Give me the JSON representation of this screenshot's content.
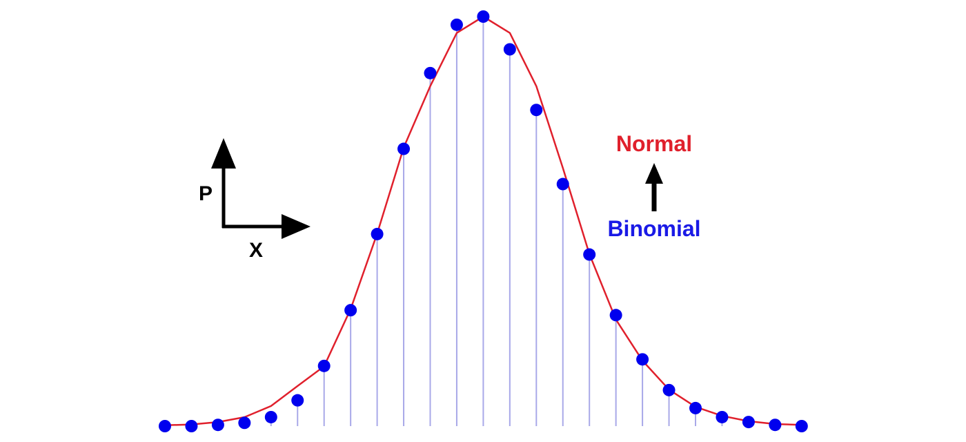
{
  "chart_data": {
    "type": "scatter",
    "axes": {
      "y_label": "P",
      "x_label": "X"
    },
    "annotation": {
      "top_label": "Normal",
      "bottom_label": "Binomial"
    },
    "x": [
      0,
      1,
      2,
      3,
      4,
      5,
      6,
      7,
      8,
      9,
      10,
      11,
      12,
      13,
      14,
      15,
      16,
      17,
      18,
      19,
      20,
      21,
      22,
      23,
      24
    ],
    "series": [
      {
        "name": "Binomial",
        "style": "points-with-stems",
        "values": [
          0.0,
          0.0,
          0.003,
          0.008,
          0.022,
          0.063,
          0.147,
          0.283,
          0.469,
          0.677,
          0.862,
          0.98,
          1.0,
          0.92,
          0.772,
          0.591,
          0.419,
          0.271,
          0.163,
          0.088,
          0.044,
          0.022,
          0.01,
          0.003,
          0.0
        ]
      },
      {
        "name": "Normal",
        "style": "line",
        "values": [
          0.002,
          0.004,
          0.01,
          0.022,
          0.049,
          0.098,
          0.146,
          0.286,
          0.47,
          0.68,
          0.83,
          0.96,
          1.0,
          0.96,
          0.83,
          0.63,
          0.42,
          0.26,
          0.16,
          0.089,
          0.047,
          0.025,
          0.012,
          0.005,
          0.003
        ]
      }
    ],
    "ylim": [
      0,
      1
    ],
    "grid": false,
    "legend": "none",
    "colors": {
      "points": "#0000ee",
      "stems": "#a8a8e8",
      "curve": "#e0202c",
      "normal_label": "#e0202c",
      "binomial_label": "#1a1ae6",
      "axes_glyph": "#000000"
    }
  }
}
